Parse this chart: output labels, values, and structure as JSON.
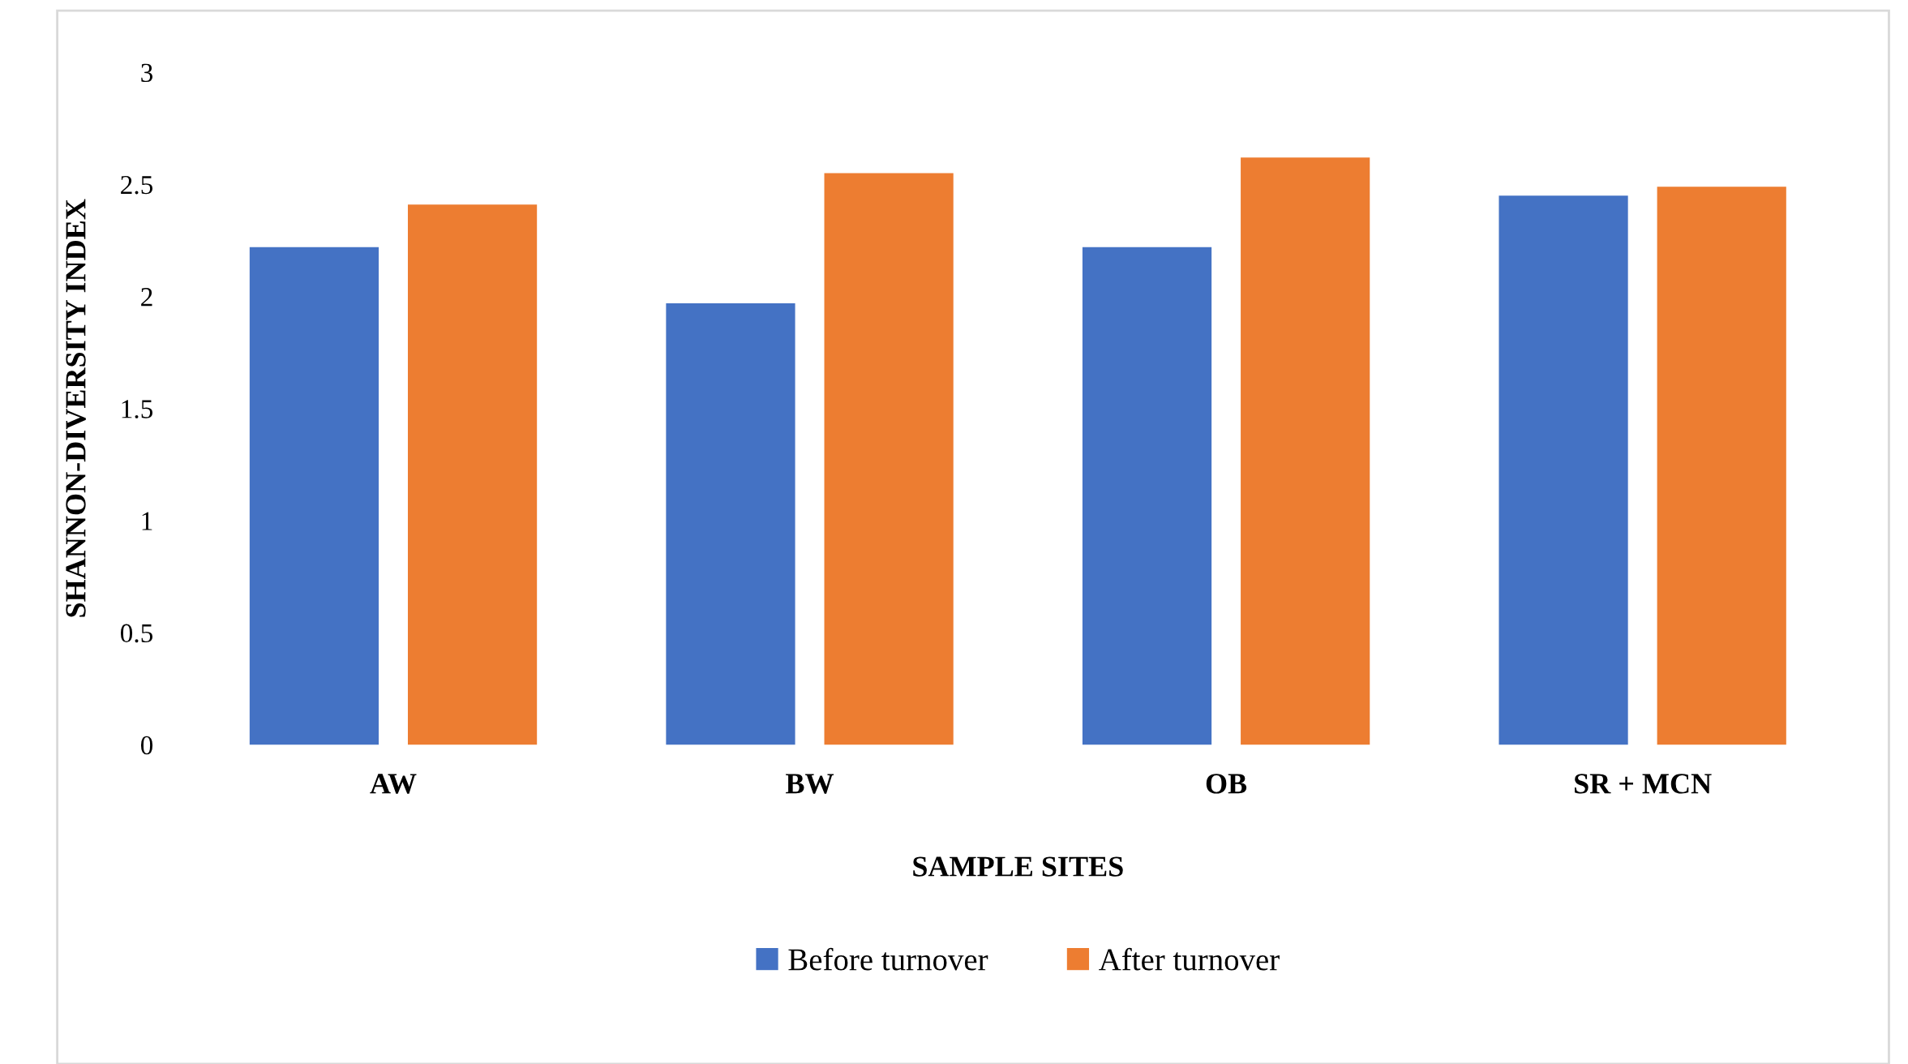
{
  "chart_data": {
    "type": "bar",
    "xlabel": "SAMPLE SITES",
    "ylabel": "SHANNON-DIVERSITY INDEX",
    "categories": [
      "AW",
      "BW",
      "OB",
      "SR + MCN"
    ],
    "series": [
      {
        "name": "Before turnover",
        "color": "#4472c4",
        "values": [
          2.22,
          1.97,
          2.22,
          2.45
        ]
      },
      {
        "name": "After turnover",
        "color": "#ed7d31",
        "values": [
          2.41,
          2.55,
          2.62,
          2.49
        ]
      }
    ],
    "ylim": [
      0,
      3
    ],
    "yticks": [
      0,
      0.5,
      1,
      1.5,
      2,
      2.5,
      3
    ],
    "grid": false,
    "legend": "bottom"
  }
}
